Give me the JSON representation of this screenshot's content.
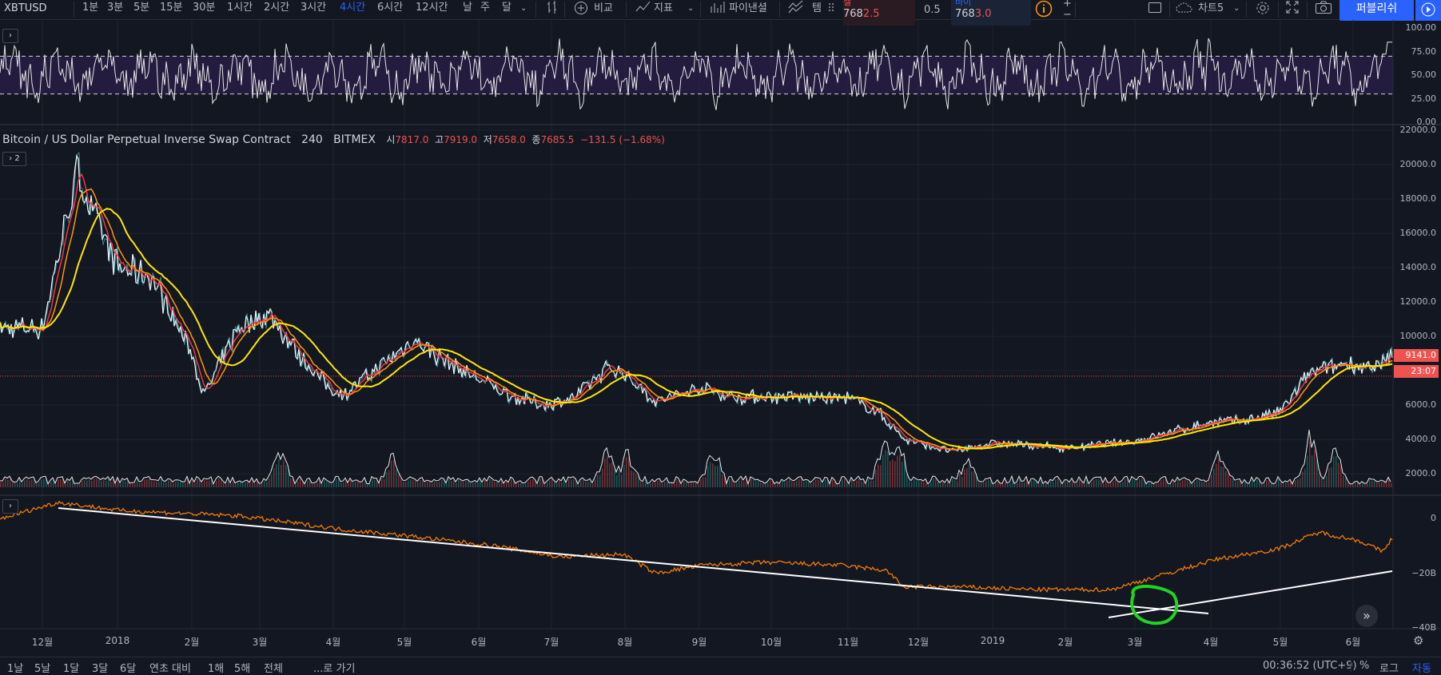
{
  "toolbar": {
    "symbol": "XBTUSD",
    "timeframes": [
      "1분",
      "3분",
      "5분",
      "15분",
      "30분",
      "1시간",
      "2시간",
      "3시간",
      "4시간",
      "6시간",
      "12시간",
      "날",
      "주",
      "달"
    ],
    "active_timeframe": "4시간",
    "compare_label": "비교",
    "indicators_label": "지표",
    "pine_label": "파이낸셜",
    "template_label": "템",
    "sell_label": "셀",
    "sell_price_main": "768",
    "sell_price_frac": "2.5",
    "spread": "0.5",
    "buy_label": "바이",
    "buy_price_main": "768",
    "buy_price_frac": "3.0",
    "plus": "+",
    "minus": "−",
    "chart_name": "차트5",
    "publish_label": "퍼블리쉬"
  },
  "legend": {
    "title": "Bitcoin / US Dollar Perpetual Inverse Swap Contract",
    "interval": "240",
    "exchange": "BITMEX",
    "open_label": "시",
    "open": "7817.0",
    "high_label": "고",
    "high": "7919.0",
    "low_label": "저",
    "low": "7658.0",
    "close_label": "종",
    "close": "7685.5",
    "change": "−131.5 (−1.68%)",
    "collapse_count": "2"
  },
  "rsi_axis": [
    "100.00",
    "75.00",
    "50.00",
    "25.00",
    "0.00"
  ],
  "price_axis": [
    "22000.0",
    "20000.0",
    "18000.0",
    "16000.0",
    "14000.0",
    "12000.0",
    "10000.0",
    "8000.0",
    "6000.0",
    "4000.0",
    "2000.0"
  ],
  "price_tag": "9141.0",
  "countdown": "23:07",
  "osc_axis": [
    "0",
    "−20B",
    "−40B"
  ],
  "time_axis": [
    "12월",
    "2018",
    "2월",
    "3월",
    "4월",
    "5월",
    "6월",
    "7월",
    "8월",
    "9월",
    "10월",
    "11월",
    "12월",
    "2019",
    "2월",
    "3월",
    "4월",
    "5월",
    "6월"
  ],
  "bottom": {
    "ranges": [
      "1날",
      "5날",
      "1달",
      "3달",
      "6달",
      "연초 대비",
      "1해",
      "5해",
      "전체"
    ],
    "goto": "...로 가기",
    "clock": "00:36:52 (UTC+9)",
    "percent": "%",
    "log": "로그",
    "auto": "자동"
  },
  "colors": {
    "background": "#131722",
    "grid": "#2a2e39",
    "accent": "#2962ff",
    "up": "#26a69a",
    "down": "#ef5350",
    "ma_yellow": "#ffe600",
    "ma_orange": "#ff9800",
    "ma_red": "#f23645",
    "obv": "#f57c00",
    "rsi_band": "#2a1f4a",
    "annotation": "#21d321"
  },
  "icons": [
    "chevron-down-icon",
    "bar-style-icon",
    "plus-circle-icon",
    "indicator-icon",
    "pine-icon",
    "template-icon",
    "info-icon",
    "rectangle-icon",
    "cloud-icon",
    "gear-icon",
    "fullscreen-icon",
    "camera-icon",
    "play-icon",
    "collapse-icon",
    "forward-icon"
  ],
  "chart_data": {
    "type": "line",
    "symbol": "XBTUSD",
    "x": [
      "2017-12-01",
      "2017-12-15",
      "2018-01-01",
      "2018-01-15",
      "2018-02-01",
      "2018-02-06",
      "2018-02-20",
      "2018-03-05",
      "2018-03-20",
      "2018-04-01",
      "2018-04-06",
      "2018-04-25",
      "2018-05-05",
      "2018-05-20",
      "2018-06-01",
      "2018-06-15",
      "2018-06-28",
      "2018-07-10",
      "2018-07-25",
      "2018-08-01",
      "2018-08-14",
      "2018-09-01",
      "2018-09-15",
      "2018-10-01",
      "2018-10-15",
      "2018-11-01",
      "2018-11-14",
      "2018-11-25",
      "2018-12-15",
      "2019-01-01",
      "2019-02-01",
      "2019-03-01",
      "2019-04-01",
      "2019-04-15",
      "2019-05-01",
      "2019-05-13",
      "2019-05-30",
      "2019-06-10",
      "2019-06-20"
    ],
    "ylim": [
      1500,
      22000
    ],
    "series": [
      {
        "values": [
          10500,
          19500,
          14000,
          13500,
          9000,
          6500,
          10500,
          11300,
          8500,
          6800,
          6700,
          8700,
          9800,
          8400,
          7500,
          6500,
          6000,
          6400,
          8200,
          7800,
          6200,
          7000,
          6500,
          6500,
          6450,
          6400,
          5600,
          4000,
          3300,
          3800,
          3500,
          3900,
          5000,
          5100,
          5600,
          7800,
          8500,
          8000,
          9141
        ]
      }
    ],
    "rsi_range": [
      0,
      100
    ],
    "rsi_levels": [
      70,
      30
    ],
    "osc_ylim": [
      -40,
      8
    ],
    "osc_unit": "B"
  }
}
